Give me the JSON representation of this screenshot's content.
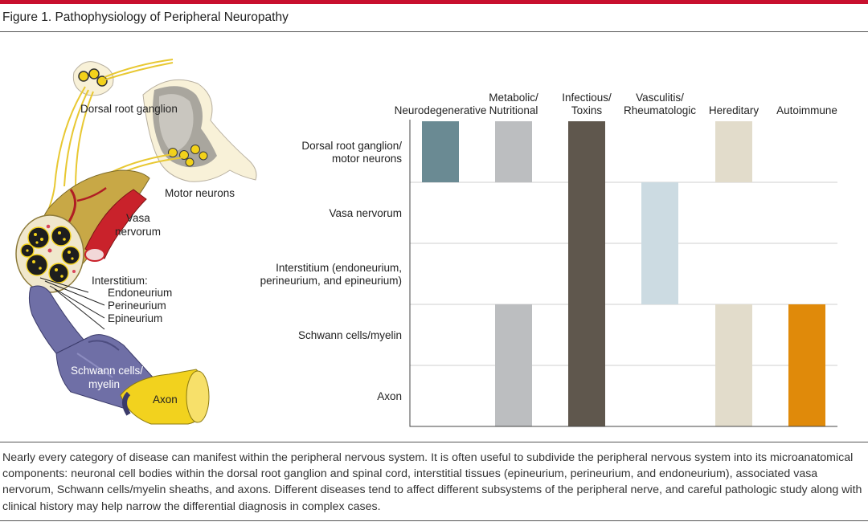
{
  "figure": {
    "title": "Figure 1. Pathophysiology of Peripheral Neuropathy",
    "caption": "Nearly every category of disease can manifest within the peripheral nervous system. It is often useful to subdivide the peripheral nervous system into its microanatomical components: neuronal cell bodies within the dorsal root ganglion and spinal cord, interstitial tissues (epineurium, perineurium, and endoneurium), associated vasa nervorum, Schwann cells/myelin sheaths, and axons. Different diseases tend to affect different subsystems of the peripheral nerve, and careful pathologic study along with clinical history may help narrow the differential diagnosis in complex cases."
  },
  "illustration": {
    "labels": {
      "drg": "Dorsal root ganglion",
      "motor": "Motor neurons",
      "vasa": [
        "Vasa",
        "nervorum"
      ],
      "interstitium": "Interstitium:",
      "endoneurium": "Endoneurium",
      "perineurium": "Perineurium",
      "epineurium": "Epineurium",
      "schwann": [
        "Schwann cells/",
        "myelin"
      ],
      "axon": "Axon"
    }
  },
  "chart_data": {
    "type": "table",
    "columns": [
      {
        "label": [
          "Neurodegenerative"
        ],
        "color": "#6a8a93"
      },
      {
        "label": [
          "Metabolic/",
          "Nutritional"
        ],
        "color": "#bcbec0"
      },
      {
        "label": [
          "Infectious/",
          "Toxins"
        ],
        "color": "#5f574d"
      },
      {
        "label": [
          "Vasculitis/",
          "Rheumatologic"
        ],
        "color": "#ccdbe2"
      },
      {
        "label": [
          "Hereditary"
        ],
        "color": "#e2dccb"
      },
      {
        "label": [
          "Autoimmune"
        ],
        "color": "#e08a0a"
      }
    ],
    "rows": [
      [
        "Dorsal root ganglion/",
        "motor neurons"
      ],
      [
        "Vasa nervorum"
      ],
      [
        "Interstitium (endoneurium,",
        "perineurium, and epineurium)"
      ],
      [
        "Schwann cells/myelin"
      ],
      [
        "Axon"
      ]
    ],
    "bars": [
      {
        "column": 0,
        "from_row": 0,
        "to_row": 0
      },
      {
        "column": 1,
        "from_row": 0,
        "to_row": 0
      },
      {
        "column": 1,
        "from_row": 3,
        "to_row": 4
      },
      {
        "column": 2,
        "from_row": 0,
        "to_row": 4
      },
      {
        "column": 3,
        "from_row": 1,
        "to_row": 2
      },
      {
        "column": 4,
        "from_row": 0,
        "to_row": 0
      },
      {
        "column": 4,
        "from_row": 3,
        "to_row": 4
      },
      {
        "column": 5,
        "from_row": 3,
        "to_row": 4
      }
    ]
  }
}
